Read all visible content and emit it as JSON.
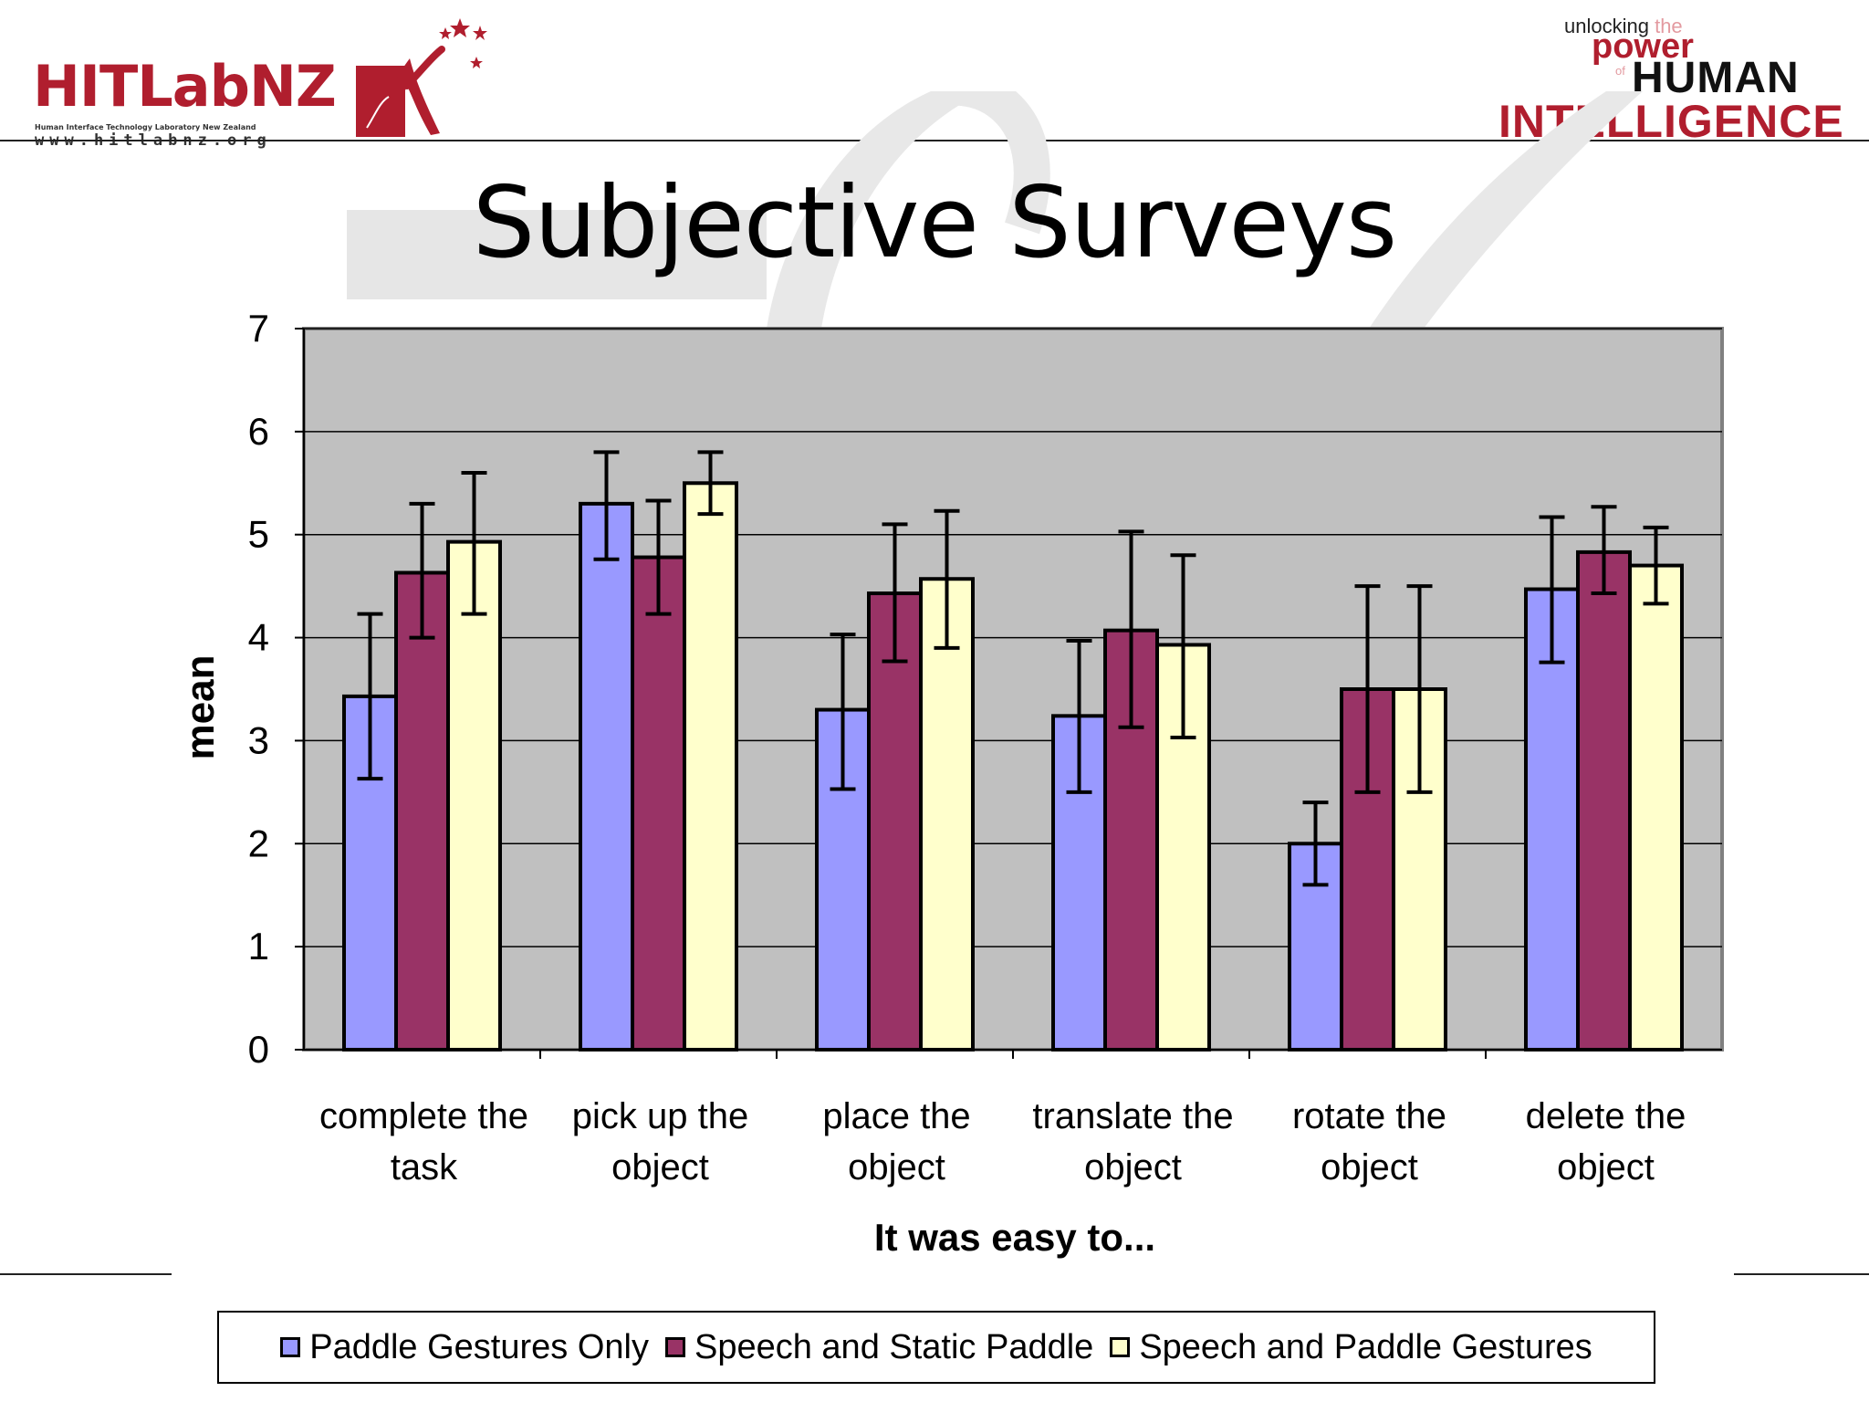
{
  "header": {
    "logo_left": {
      "text_hit": "HIT",
      "text_lab": "LabNZ",
      "subtitle": "Human Interface Technology Laboratory New Zealand",
      "url": "www.hitlabnz.org"
    },
    "logo_right": {
      "line1_a": "unlocking",
      "line1_b": "the",
      "line2": "power",
      "line2_of": "of",
      "line3": "HUMAN",
      "line4": "INTELLIGENCE"
    }
  },
  "slide": {
    "title": "Subjective Surveys"
  },
  "colors": {
    "series": [
      "#9999ff",
      "#993366",
      "#ffffcc"
    ],
    "plot_bg": "#c0c0c0",
    "brand": "#b01e2e"
  },
  "chart_data": {
    "type": "bar",
    "title": "",
    "xlabel": "It was easy to...",
    "ylabel": "mean",
    "ylim": [
      0,
      7
    ],
    "yticks": [
      0,
      1,
      2,
      3,
      4,
      5,
      6,
      7
    ],
    "grid": true,
    "legend_position": "bottom",
    "categories": [
      [
        "complete the",
        "task"
      ],
      [
        "pick up the",
        "object"
      ],
      [
        "place the",
        "object"
      ],
      [
        "translate the",
        "object"
      ],
      [
        "rotate the",
        "object"
      ],
      [
        "delete the",
        "object"
      ]
    ],
    "series": [
      {
        "name": "Paddle Gestures Only",
        "values": [
          3.43,
          5.3,
          3.3,
          3.24,
          2.0,
          4.47
        ],
        "err_low": [
          2.63,
          4.76,
          2.53,
          2.5,
          1.6,
          3.76
        ],
        "err_high": [
          4.23,
          5.8,
          4.03,
          3.97,
          2.4,
          5.17
        ]
      },
      {
        "name": "Speech and Static Paddle",
        "values": [
          4.63,
          4.78,
          4.43,
          4.07,
          3.5,
          4.83
        ],
        "err_low": [
          4.0,
          4.23,
          3.77,
          3.13,
          2.5,
          4.43
        ],
        "err_high": [
          5.3,
          5.33,
          5.1,
          5.03,
          4.5,
          5.27
        ]
      },
      {
        "name": "Speech and Paddle Gestures",
        "values": [
          4.93,
          5.5,
          4.57,
          3.93,
          3.5,
          4.7
        ],
        "err_low": [
          4.23,
          5.2,
          3.9,
          3.03,
          2.5,
          4.33
        ],
        "err_high": [
          5.6,
          5.8,
          5.23,
          4.8,
          4.5,
          5.07
        ]
      }
    ]
  }
}
